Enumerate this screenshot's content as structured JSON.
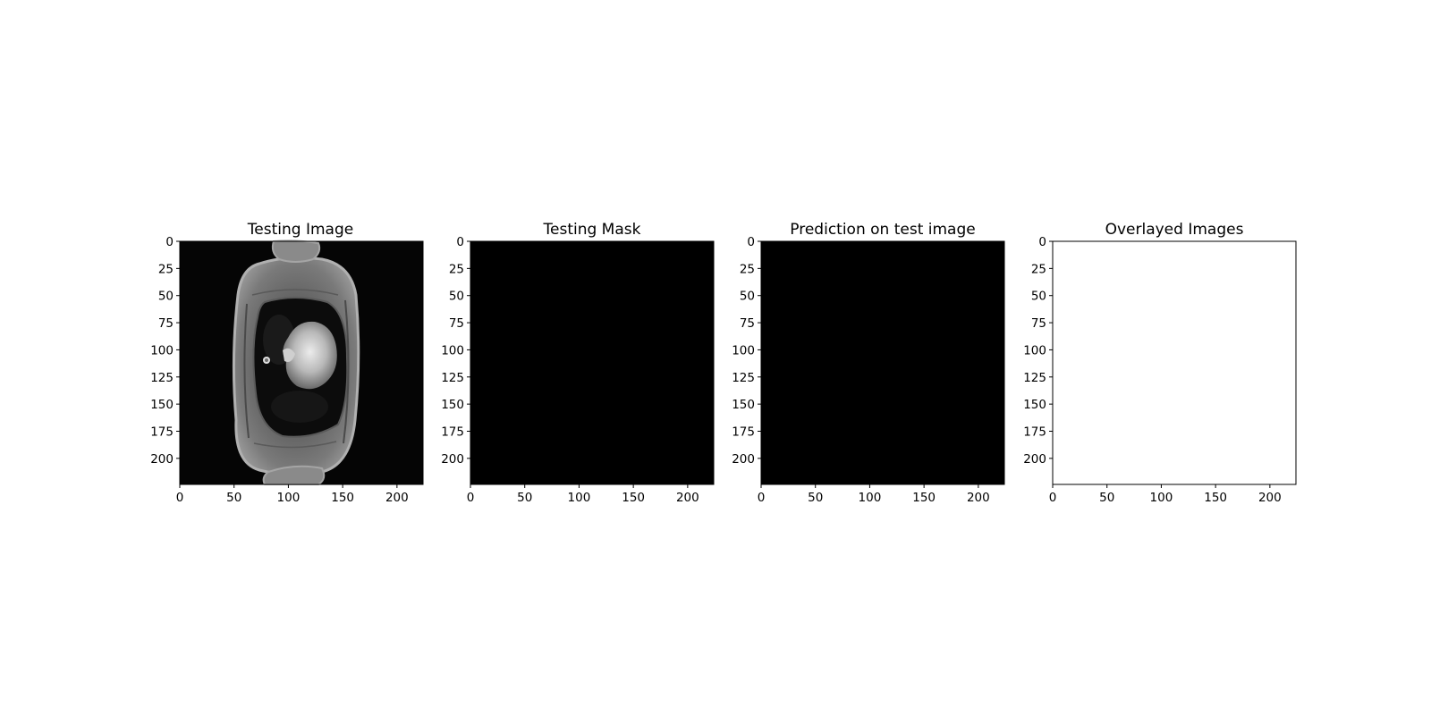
{
  "figure": {
    "background": "#ffffff",
    "panels": [
      {
        "key": "testing-image",
        "title": "Testing Image",
        "content": "grayscale-mri-chest-slice",
        "fill": "#050505",
        "xticks": [
          "0",
          "50",
          "100",
          "150",
          "200"
        ],
        "yticks": [
          "0",
          "25",
          "50",
          "75",
          "100",
          "125",
          "150",
          "175",
          "200"
        ]
      },
      {
        "key": "testing-mask",
        "title": "Testing Mask",
        "content": "empty-mask",
        "fill": "#000000",
        "xticks": [
          "0",
          "50",
          "100",
          "150",
          "200"
        ],
        "yticks": [
          "0",
          "25",
          "50",
          "75",
          "100",
          "125",
          "150",
          "175",
          "200"
        ]
      },
      {
        "key": "prediction",
        "title": "Prediction on test image",
        "content": "empty-prediction",
        "fill": "#000000",
        "xticks": [
          "0",
          "50",
          "100",
          "150",
          "200"
        ],
        "yticks": [
          "0",
          "25",
          "50",
          "75",
          "100",
          "125",
          "150",
          "175",
          "200"
        ]
      },
      {
        "key": "overlayed",
        "title": "Overlayed Images",
        "content": "blank-overlay",
        "fill": "#ffffff",
        "xticks": [
          "0",
          "50",
          "100",
          "150",
          "200"
        ],
        "yticks": [
          "0",
          "25",
          "50",
          "75",
          "100",
          "125",
          "150",
          "175",
          "200"
        ]
      }
    ]
  }
}
